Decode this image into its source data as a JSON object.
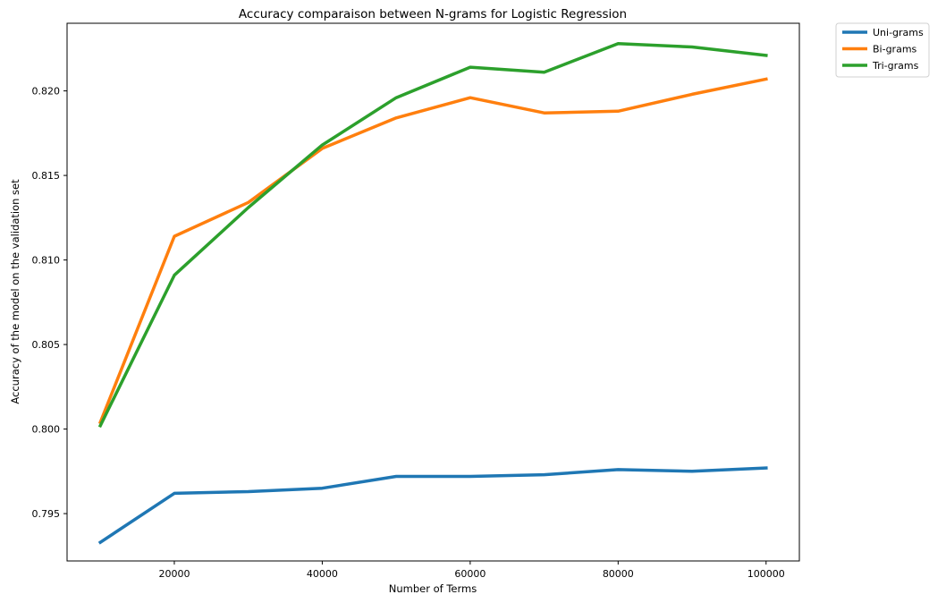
{
  "chart_data": {
    "type": "line",
    "title": "Accuracy comparaison between N-grams for Logistic Regression",
    "xlabel": "Number of Terms",
    "ylabel": "Accuracy of the model on the validation set",
    "x": [
      10000,
      20000,
      30000,
      40000,
      50000,
      60000,
      70000,
      80000,
      90000,
      100000
    ],
    "xticks": [
      20000,
      40000,
      60000,
      80000,
      100000
    ],
    "xtick_labels": [
      "20000",
      "40000",
      "60000",
      "80000",
      "100000"
    ],
    "yticks": [
      0.795,
      0.8,
      0.805,
      0.81,
      0.815,
      0.82
    ],
    "ytick_labels": [
      "0.795",
      "0.800",
      "0.805",
      "0.810",
      "0.815",
      "0.820"
    ],
    "xlim": [
      5500,
      104500
    ],
    "ylim": [
      0.7922,
      0.824
    ],
    "grid": false,
    "legend_position": "outside-top-right",
    "series": [
      {
        "name": "Uni-grams",
        "color": "#1f77b4",
        "values": [
          0.7933,
          0.7962,
          0.7963,
          0.7965,
          0.7972,
          0.7972,
          0.7973,
          0.7976,
          0.7975,
          0.7977
        ]
      },
      {
        "name": "Bi-grams",
        "color": "#ff7f0e",
        "values": [
          0.8004,
          0.8114,
          0.8134,
          0.8166,
          0.8184,
          0.8196,
          0.8187,
          0.8188,
          0.8198,
          0.8207
        ]
      },
      {
        "name": "Tri-grams",
        "color": "#2ca02c",
        "values": [
          0.8002,
          0.8091,
          0.8131,
          0.8168,
          0.8196,
          0.8214,
          0.8211,
          0.8228,
          0.8226,
          0.8221
        ]
      }
    ]
  }
}
